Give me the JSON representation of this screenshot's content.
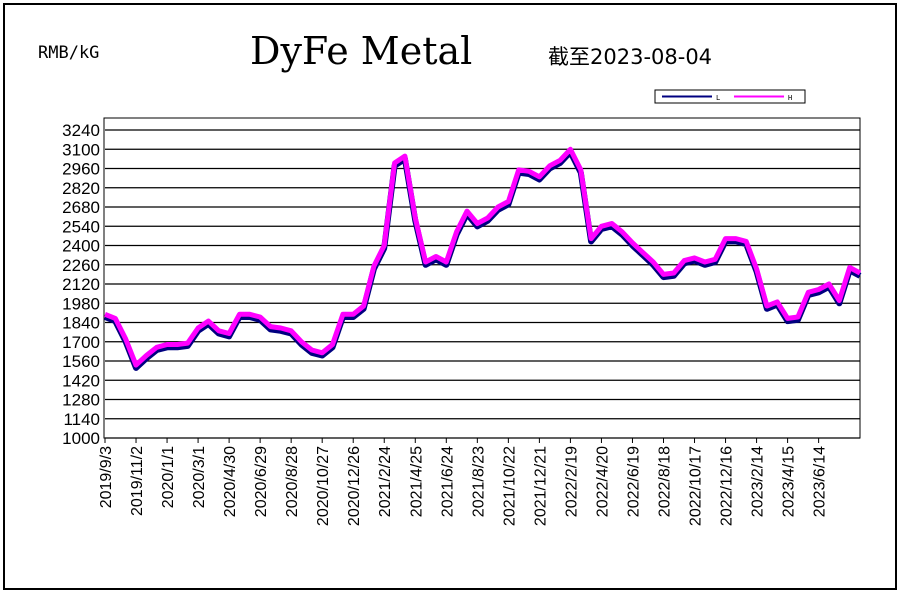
{
  "chart_data": {
    "type": "line",
    "title": "DyFe Metal",
    "unit_label": "RMB/kG",
    "date_note": "截至2023-08-04",
    "categories": [
      "2019/9/3",
      null,
      null,
      "2019/11/2",
      null,
      null,
      "2020/1/1",
      null,
      null,
      "2020/3/1",
      null,
      null,
      "2020/4/30",
      null,
      null,
      "2020/6/29",
      null,
      null,
      "2020/8/28",
      null,
      null,
      "2020/10/27",
      null,
      null,
      "2020/12/26",
      null,
      null,
      "2021/2/24",
      null,
      null,
      "2021/4/25",
      null,
      null,
      "2021/6/24",
      null,
      null,
      "2021/8/23",
      null,
      null,
      "2021/10/22",
      null,
      null,
      "2021/12/21",
      null,
      null,
      "2022/2/19",
      null,
      null,
      "2022/4/20",
      null,
      null,
      "2022/6/19",
      null,
      null,
      "2022/8/18",
      null,
      null,
      "2022/10/17",
      null,
      null,
      "2022/12/16",
      null,
      null,
      "2023/2/14",
      null,
      null,
      "2023/4/15",
      null,
      null,
      "2023/6/14",
      null,
      null,
      null,
      null
    ],
    "series": [
      {
        "name": "L",
        "color": "#000080",
        "values": [
          1880,
          1850,
          1700,
          1510,
          1580,
          1640,
          1660,
          1660,
          1670,
          1780,
          1830,
          1760,
          1740,
          1880,
          1880,
          1860,
          1790,
          1780,
          1760,
          1680,
          1620,
          1600,
          1660,
          1880,
          1880,
          1940,
          2230,
          2380,
          2980,
          3030,
          2580,
          2260,
          2300,
          2260,
          2480,
          2630,
          2540,
          2580,
          2660,
          2700,
          2930,
          2920,
          2880,
          2960,
          3000,
          3080,
          2930,
          2430,
          2520,
          2540,
          2480,
          2400,
          2330,
          2260,
          2170,
          2180,
          2270,
          2290,
          2260,
          2280,
          2430,
          2430,
          2410,
          2210,
          1940,
          1970,
          1850,
          1860,
          2040,
          2060,
          2100,
          1980,
          2220,
          2180
        ]
      },
      {
        "name": "H",
        "color": "#ff00ff",
        "values": [
          1900,
          1870,
          1720,
          1530,
          1600,
          1660,
          1680,
          1680,
          1690,
          1800,
          1850,
          1780,
          1760,
          1900,
          1900,
          1880,
          1810,
          1800,
          1780,
          1700,
          1640,
          1620,
          1680,
          1900,
          1900,
          1960,
          2250,
          2400,
          3000,
          3050,
          2600,
          2280,
          2320,
          2280,
          2500,
          2650,
          2560,
          2600,
          2680,
          2720,
          2950,
          2940,
          2900,
          2980,
          3020,
          3100,
          2950,
          2450,
          2540,
          2560,
          2500,
          2420,
          2350,
          2280,
          2190,
          2200,
          2290,
          2310,
          2280,
          2300,
          2450,
          2450,
          2430,
          2230,
          1960,
          1990,
          1870,
          1880,
          2060,
          2080,
          2120,
          2000,
          2240,
          2200
        ]
      }
    ],
    "ylim": [
      1000,
      3240
    ],
    "yticks": [
      1000,
      1140,
      1280,
      1420,
      1560,
      1700,
      1840,
      1980,
      2120,
      2260,
      2400,
      2540,
      2680,
      2820,
      2960,
      3100,
      3240
    ],
    "grid": true
  }
}
